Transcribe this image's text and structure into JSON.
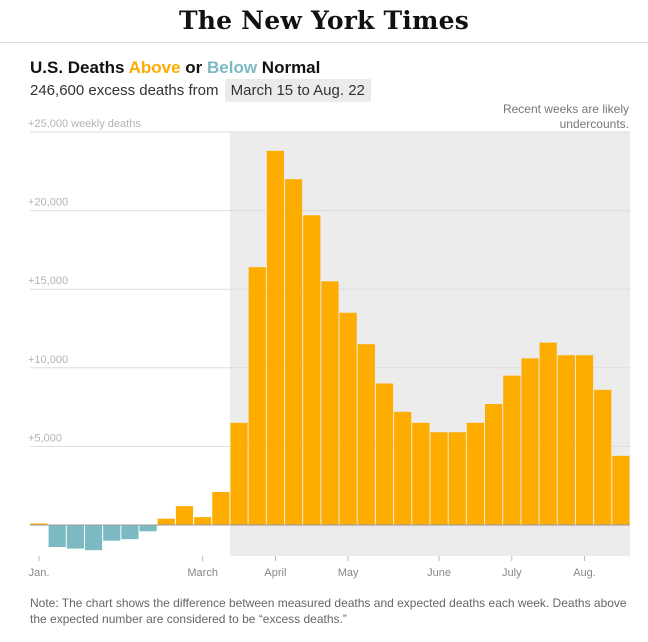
{
  "masthead": {
    "logo_text": "The New York Times"
  },
  "headline": {
    "prefix": "U.S. Deaths ",
    "above": "Above",
    "middle": " or ",
    "below": "Below",
    "suffix": " Normal"
  },
  "subhead": {
    "text": "246,600 excess deaths from ",
    "range": "March 15 to Aug. 22"
  },
  "annotation": {
    "line1": "Recent weeks are likely",
    "line2": "undercounts."
  },
  "note": "Note: The chart shows the difference between measured deaths and expected deaths each week. Deaths above the expected number are considered to be “excess deaths.”",
  "colors": {
    "above": "#fdac00",
    "below": "#7bbac3",
    "shade": "#ececec",
    "grid": "#dddddd"
  },
  "chart_data": {
    "type": "bar",
    "title": "U.S. Deaths Above or Below Normal",
    "ylabel": "",
    "ylim": [
      -1900,
      25000
    ],
    "y_ticks": [
      {
        "value": 25000,
        "label": "+25,000 weekly deaths"
      },
      {
        "value": 20000,
        "label": "+20,000"
      },
      {
        "value": 15000,
        "label": "+15,000"
      },
      {
        "value": 10000,
        "label": "+10,000"
      },
      {
        "value": 5000,
        "label": "+5,000"
      }
    ],
    "x_ticks": [
      {
        "week": 0,
        "label": "Jan."
      },
      {
        "week": 9,
        "label": "March"
      },
      {
        "week": 13,
        "label": "April"
      },
      {
        "week": 17,
        "label": "May"
      },
      {
        "week": 22,
        "label": "June"
      },
      {
        "week": 26,
        "label": "July"
      },
      {
        "week": 30,
        "label": "Aug."
      }
    ],
    "shaded_from_week": 11,
    "values": [
      100,
      -1400,
      -1500,
      -1600,
      -1000,
      -900,
      -400,
      400,
      1200,
      500,
      2100,
      6500,
      16400,
      23800,
      22000,
      19700,
      15500,
      13500,
      11500,
      9000,
      7200,
      6500,
      5900,
      5900,
      6500,
      7700,
      9500,
      10600,
      11600,
      10800,
      10800,
      8600,
      4400
    ]
  }
}
